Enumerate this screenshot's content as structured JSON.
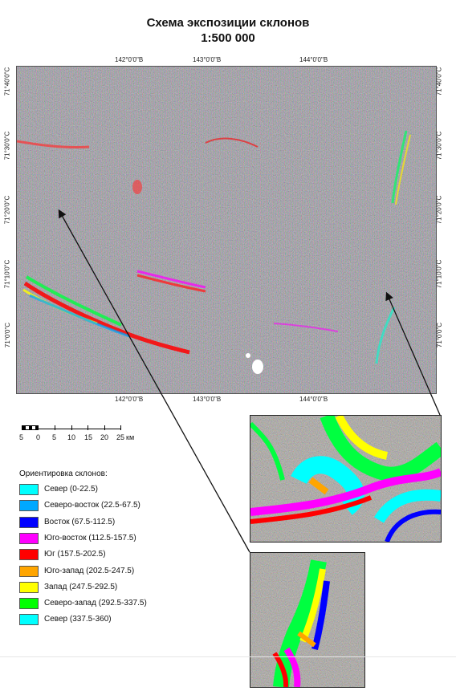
{
  "title": "Схема экспозиции склонов",
  "scale_text": "1:500 000",
  "longitudes": [
    "142°0'0\"В",
    "143°0'0\"В",
    "144°0'0\"В"
  ],
  "latitudes": [
    "71°40'0\"С",
    "71°30'0\"С",
    "71°20'0\"С",
    "71°10'0\"С",
    "71°0'0\"С"
  ],
  "scalebar": {
    "ticks": [
      "5",
      "0",
      "5",
      "10",
      "15",
      "20",
      "25"
    ],
    "unit": "км"
  },
  "legend": {
    "title": "Ориентировка склонов:",
    "items": [
      {
        "label": "Север (0-22.5)",
        "color": "#00ffff"
      },
      {
        "label": "Северо-восток (22.5-67.5)",
        "color": "#00a8ff"
      },
      {
        "label": "Восток (67.5-112.5)",
        "color": "#0000ff"
      },
      {
        "label": "Юго-восток (112.5-157.5)",
        "color": "#ff00ff"
      },
      {
        "label": "Юг (157.5-202.5)",
        "color": "#ff0000"
      },
      {
        "label": "Юго-запад (202.5-247.5)",
        "color": "#ffa500"
      },
      {
        "label": "Запад (247.5-292.5)",
        "color": "#ffff00"
      },
      {
        "label": "Северо-запад (292.5-337.5)",
        "color": "#00ff00"
      },
      {
        "label": "Север (337.5-360)",
        "color": "#00ffff"
      }
    ]
  }
}
